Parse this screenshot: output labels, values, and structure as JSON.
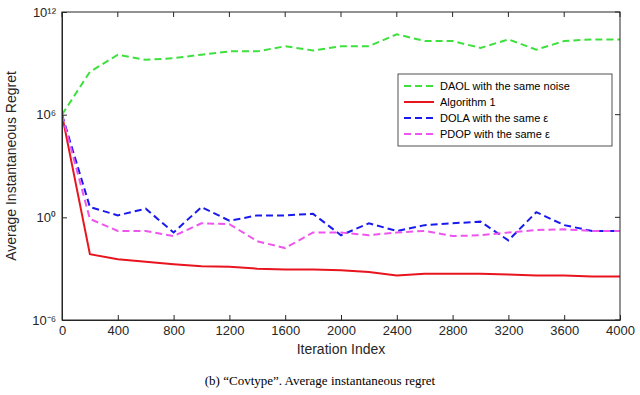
{
  "chart_data": {
    "type": "line",
    "title": "(b) “Covtype”. Average instantaneous regret",
    "x_label": "Iteration Index",
    "y_label": "Average Instantaneous Regret",
    "log": "y",
    "grid": false,
    "legend": "upper right",
    "x": [
      0,
      200,
      400,
      600,
      800,
      1000,
      1200,
      1400,
      1600,
      1800,
      2000,
      2200,
      2400,
      2600,
      2800,
      3000,
      3200,
      3400,
      3600,
      3800,
      4000
    ],
    "xlim": [
      0,
      4000
    ],
    "xticks": [
      0,
      400,
      800,
      1200,
      1600,
      2000,
      2400,
      2800,
      3200,
      3600,
      4000
    ],
    "ylim": [
      1e-06,
      1000000000000.0
    ],
    "yticks": [
      {
        "value": 1e-06,
        "label": "10⁻⁶"
      },
      {
        "value": 1,
        "label": "10⁰"
      },
      {
        "value": 1000000.0,
        "label": "10⁶"
      },
      {
        "value": 1000000000000.0,
        "label": "10¹²"
      }
    ],
    "series": [
      {
        "name": "DAOL with the same noise",
        "color": "#3ee03e",
        "line_style": "dashed",
        "values": [
          1000000.0,
          320000000.0,
          3200000000.0,
          1600000000.0,
          2000000000.0,
          3200000000.0,
          5000000000.0,
          5000000000.0,
          10000000000.0,
          5600000000.0,
          10000000000.0,
          10000000000.0,
          50000000000.0,
          20000000000.0,
          20000000000.0,
          8000000000.0,
          25000000000.0,
          6300000000.0,
          20000000000.0,
          25000000000.0,
          25000000000.0
        ]
      },
      {
        "name": "Algorithm 1",
        "color": "#e8141e",
        "line_style": "solid",
        "values": [
          1000000.0,
          0.007,
          0.0035,
          0.0025,
          0.0018,
          0.0014,
          0.0013,
          0.001,
          0.0009,
          0.0009,
          0.0008,
          0.00063,
          0.0004,
          0.0005,
          0.0005,
          0.0005,
          0.00045,
          0.0004,
          0.0004,
          0.00035,
          0.00035
        ]
      },
      {
        "name": "DOLA with the same ε",
        "color": "#1a1aee",
        "line_style": "dashed",
        "values": [
          1000000.0,
          4,
          1.3,
          3.2,
          0.13,
          4,
          0.63,
          1.3,
          1.3,
          1.6,
          0.09,
          0.45,
          0.16,
          0.35,
          0.45,
          0.56,
          0.045,
          2,
          0.35,
          0.16,
          0.16
        ]
      },
      {
        "name": "PDOP with the same ε",
        "color": "#ee55ee",
        "line_style": "dashed",
        "values": [
          1000000.0,
          0.8,
          0.16,
          0.16,
          0.08,
          0.45,
          0.4,
          0.04,
          0.016,
          0.13,
          0.13,
          0.09,
          0.13,
          0.16,
          0.08,
          0.09,
          0.13,
          0.18,
          0.2,
          0.16,
          0.16
        ]
      }
    ]
  }
}
